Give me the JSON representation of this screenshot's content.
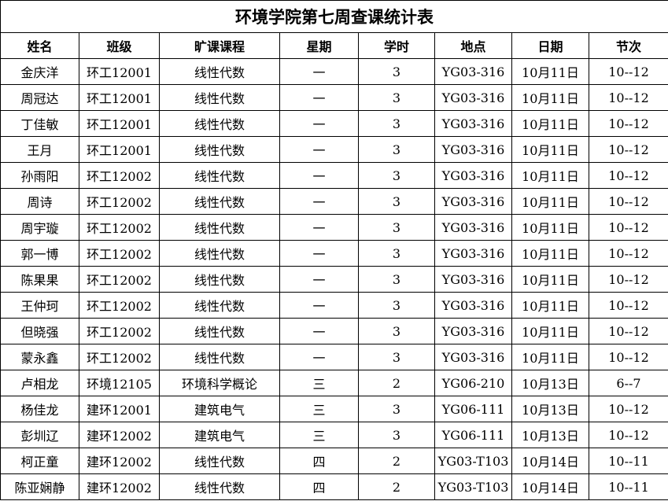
{
  "title": "环境学院第七周查课统计表",
  "headers": [
    "姓名",
    "班级",
    "旷课课程",
    "星期",
    "学时",
    "地点",
    "日期",
    "节次"
  ],
  "rows": [
    [
      "金庆洋",
      "环工12001",
      "线性代数",
      "一",
      "3",
      "YG03-316",
      "10月11日",
      "10--12"
    ],
    [
      "周冠达",
      "环工12001",
      "线性代数",
      "一",
      "3",
      "YG03-316",
      "10月11日",
      "10--12"
    ],
    [
      "丁佳敏",
      "环工12001",
      "线性代数",
      "一",
      "3",
      "YG03-316",
      "10月11日",
      "10--12"
    ],
    [
      "王月",
      "环工12001",
      "线性代数",
      "一",
      "3",
      "YG03-316",
      "10月11日",
      "10--12"
    ],
    [
      "孙雨阳",
      "环工12002",
      "线性代数",
      "一",
      "3",
      "YG03-316",
      "10月11日",
      "10--12"
    ],
    [
      "周诗",
      "环工12002",
      "线性代数",
      "一",
      "3",
      "YG03-316",
      "10月11日",
      "10--12"
    ],
    [
      "周宇璇",
      "环工12002",
      "线性代数",
      "一",
      "3",
      "YG03-316",
      "10月11日",
      "10--12"
    ],
    [
      "郭一博",
      "环工12002",
      "线性代数",
      "一",
      "3",
      "YG03-316",
      "10月11日",
      "10--12"
    ],
    [
      "陈果果",
      "环工12002",
      "线性代数",
      "一",
      "3",
      "YG03-316",
      "10月11日",
      "10--12"
    ],
    [
      "王仲珂",
      "环工12002",
      "线性代数",
      "一",
      "3",
      "YG03-316",
      "10月11日",
      "10--12"
    ],
    [
      "但晓强",
      "环工12002",
      "线性代数",
      "一",
      "3",
      "YG03-316",
      "10月11日",
      "10--12"
    ],
    [
      "蒙永鑫",
      "环工12002",
      "线性代数",
      "一",
      "3",
      "YG03-316",
      "10月11日",
      "10--12"
    ],
    [
      "卢相龙",
      "环境12105",
      "环境科学概论",
      "三",
      "2",
      "YG06-210",
      "10月13日",
      "6--7"
    ],
    [
      "杨佳龙",
      "建环12001",
      "建筑电气",
      "三",
      "3",
      "YG06-111",
      "10月13日",
      "10--12"
    ],
    [
      "彭圳辽",
      "建环12002",
      "建筑电气",
      "三",
      "3",
      "YG06-111",
      "10月13日",
      "10--12"
    ],
    [
      "柯正童",
      "建环12002",
      "线性代数",
      "四",
      "2",
      "YG03-T103",
      "10月14日",
      "10--11"
    ],
    [
      "陈亚娴静",
      "建环12002",
      "线性代数",
      "四",
      "2",
      "YG03-T103",
      "10月14日",
      "10--11"
    ]
  ]
}
